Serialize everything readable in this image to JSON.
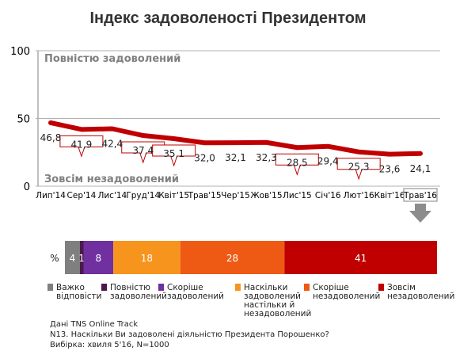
{
  "chart_data": {
    "type": "line",
    "title": "Індекс задоволеності Президентом",
    "ylim": [
      0,
      100
    ],
    "yticks": [
      0,
      50,
      100
    ],
    "top_band_label": "Повністю задоволений",
    "bottom_band_label": "Зовсім незадоволений",
    "categories": [
      "Лип'14",
      "Сер'14",
      "Лис'14",
      "Груд'14",
      "Квіт'15",
      "Трав'15",
      "Чер'15",
      "Жов'15",
      "Лис'15",
      "Січ'16",
      "Лют'16",
      "Квіт'16",
      "Трав'16"
    ],
    "values": [
      46.8,
      41.9,
      42.4,
      37.4,
      35.1,
      32.0,
      32.1,
      32.3,
      28.5,
      29.4,
      25.3,
      23.6,
      24.1
    ],
    "value_labels": [
      "46,8",
      "41,9",
      "42,4",
      "37,4",
      "35,1",
      "32,0",
      "32,1",
      "32,3",
      "28,5",
      "29,4",
      "25,3",
      "23,6",
      "24,1"
    ],
    "down_arrows": [
      1,
      3,
      4,
      8,
      10
    ],
    "highlighted_category": 12,
    "line_color": "#c00000",
    "breakdown": {
      "row_label": "%",
      "segments": [
        {
          "name": "Важко відповісти",
          "value": 4,
          "label": "4",
          "color": "#7f7f7f"
        },
        {
          "name": "Повністю задоволений",
          "value": 1,
          "label": "1",
          "color": "#4a1a4a"
        },
        {
          "name": "Скоріше задоволений",
          "value": 8,
          "label": "8",
          "color": "#7030a0"
        },
        {
          "name": "Наскільки задоволений настільки й незадоволений",
          "value": 18,
          "label": "18",
          "color": "#f7941d"
        },
        {
          "name": "Скоріше незадоволений",
          "value": 28,
          "label": "28",
          "color": "#ee5a14"
        },
        {
          "name": "Зовсім незадоволений",
          "value": 41,
          "label": "41",
          "color": "#c00000"
        }
      ],
      "legend": [
        [
          "Важко",
          "відповісти"
        ],
        [
          "Повністю",
          "задоволений"
        ],
        [
          "Скоріше",
          "задоволений"
        ],
        [
          "Наскільки",
          "задоволений",
          "настільки й",
          "незадоволений"
        ],
        [
          "Скоріше",
          "незадоволений"
        ],
        [
          "Зовсім",
          "незадоволений"
        ]
      ]
    }
  },
  "footer": {
    "line1": "Дані TNS Online Track",
    "line2": "N13. Наскільки Ви задоволені діяльністю Президента Порошенко?",
    "line3": "Вибірка: хвиля 5'16, N=1000"
  }
}
